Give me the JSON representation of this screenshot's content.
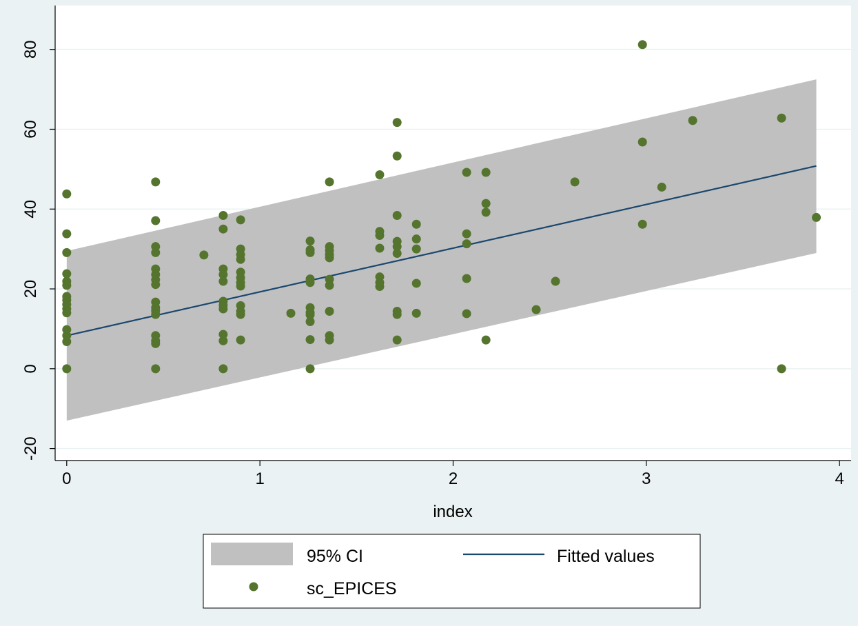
{
  "chart_data": {
    "type": "scatter",
    "xlabel": "index",
    "ylabel": "",
    "xlim": [
      -0.06,
      4.06
    ],
    "ylim": [
      -23,
      91
    ],
    "xticks": [
      0,
      1,
      2,
      3,
      4
    ],
    "yticks": [
      -20,
      0,
      20,
      40,
      60,
      80
    ],
    "grid": true,
    "legend_position": "bottom",
    "colors": {
      "plot_background": "#ffffff",
      "page_background": "#eaf2f3",
      "grid": "#eaf2f3",
      "ci_band": "#c0c0c0",
      "fitted_line": "#1a476f",
      "scatter": "#55752f"
    },
    "series": [
      {
        "name": "95% CI",
        "type": "area",
        "x": [
          0,
          3.88
        ],
        "lower": [
          -13,
          29
        ],
        "upper": [
          29.5,
          72.5
        ]
      },
      {
        "name": "Fitted values",
        "type": "line",
        "x": [
          0,
          3.88
        ],
        "y": [
          8.3,
          50.8
        ]
      },
      {
        "name": "sc_EPICES",
        "type": "scatter",
        "points": [
          [
            0,
            43.8
          ],
          [
            0,
            33.8
          ],
          [
            0,
            29.1
          ],
          [
            0,
            23.8
          ],
          [
            0,
            21.9
          ],
          [
            0,
            20.9
          ],
          [
            0,
            18.1
          ],
          [
            0,
            17.2
          ],
          [
            0,
            16.1
          ],
          [
            0,
            15.0
          ],
          [
            0,
            14.0
          ],
          [
            0,
            9.8
          ],
          [
            0,
            8.3
          ],
          [
            0,
            6.8
          ],
          [
            0,
            0
          ],
          [
            0.46,
            46.8
          ],
          [
            0.46,
            37.1
          ],
          [
            0.46,
            30.6
          ],
          [
            0.46,
            29.1
          ],
          [
            0.46,
            25.0
          ],
          [
            0.46,
            23.6
          ],
          [
            0.46,
            22.3
          ],
          [
            0.46,
            21.1
          ],
          [
            0.46,
            16.7
          ],
          [
            0.46,
            15.3
          ],
          [
            0.46,
            14.5
          ],
          [
            0.46,
            13.6
          ],
          [
            0.46,
            8.3
          ],
          [
            0.46,
            7.0
          ],
          [
            0.46,
            6.3
          ],
          [
            0.46,
            0
          ],
          [
            0.71,
            28.5
          ],
          [
            0.81,
            38.4
          ],
          [
            0.81,
            35.0
          ],
          [
            0.81,
            25.0
          ],
          [
            0.81,
            23.6
          ],
          [
            0.81,
            21.9
          ],
          [
            0.81,
            16.9
          ],
          [
            0.81,
            15.9
          ],
          [
            0.81,
            15.0
          ],
          [
            0.81,
            8.6
          ],
          [
            0.81,
            7.0
          ],
          [
            0.81,
            0
          ],
          [
            0.9,
            37.3
          ],
          [
            0.9,
            30.0
          ],
          [
            0.9,
            28.6
          ],
          [
            0.9,
            27.4
          ],
          [
            0.9,
            24.2
          ],
          [
            0.9,
            22.8
          ],
          [
            0.9,
            21.6
          ],
          [
            0.9,
            20.7
          ],
          [
            0.9,
            15.8
          ],
          [
            0.9,
            14.4
          ],
          [
            0.9,
            13.6
          ],
          [
            0.9,
            7.2
          ],
          [
            1.16,
            13.9
          ],
          [
            1.26,
            32.0
          ],
          [
            1.26,
            29.8
          ],
          [
            1.26,
            29.1
          ],
          [
            1.26,
            22.5
          ],
          [
            1.26,
            21.6
          ],
          [
            1.26,
            15.3
          ],
          [
            1.26,
            14.1
          ],
          [
            1.26,
            13.5
          ],
          [
            1.26,
            11.8
          ],
          [
            1.26,
            7.3
          ],
          [
            1.26,
            0
          ],
          [
            1.36,
            46.8
          ],
          [
            1.36,
            30.6
          ],
          [
            1.36,
            29.6
          ],
          [
            1.36,
            28.6
          ],
          [
            1.36,
            27.8
          ],
          [
            1.36,
            22.4
          ],
          [
            1.36,
            20.9
          ],
          [
            1.36,
            14.4
          ],
          [
            1.36,
            8.3
          ],
          [
            1.36,
            7.2
          ],
          [
            1.62,
            48.6
          ],
          [
            1.62,
            34.4
          ],
          [
            1.62,
            33.4
          ],
          [
            1.62,
            30.2
          ],
          [
            1.62,
            23.0
          ],
          [
            1.62,
            21.6
          ],
          [
            1.62,
            20.6
          ],
          [
            1.71,
            61.7
          ],
          [
            1.71,
            53.3
          ],
          [
            1.71,
            38.4
          ],
          [
            1.71,
            31.9
          ],
          [
            1.71,
            30.6
          ],
          [
            1.71,
            28.9
          ],
          [
            1.71,
            14.4
          ],
          [
            1.71,
            13.6
          ],
          [
            1.71,
            7.2
          ],
          [
            1.81,
            36.2
          ],
          [
            1.81,
            32.5
          ],
          [
            1.81,
            30.0
          ],
          [
            1.81,
            21.4
          ],
          [
            1.81,
            13.9
          ],
          [
            2.07,
            49.2
          ],
          [
            2.07,
            33.8
          ],
          [
            2.07,
            31.3
          ],
          [
            2.07,
            22.6
          ],
          [
            2.07,
            13.8
          ],
          [
            2.17,
            49.2
          ],
          [
            2.17,
            41.4
          ],
          [
            2.17,
            39.2
          ],
          [
            2.17,
            7.2
          ],
          [
            2.43,
            14.8
          ],
          [
            2.53,
            21.9
          ],
          [
            2.63,
            46.8
          ],
          [
            2.98,
            81.2
          ],
          [
            2.98,
            56.8
          ],
          [
            2.98,
            36.2
          ],
          [
            3.08,
            45.5
          ],
          [
            3.24,
            62.2
          ],
          [
            3.7,
            62.8
          ],
          [
            3.7,
            0
          ],
          [
            3.88,
            37.9
          ]
        ]
      }
    ]
  }
}
